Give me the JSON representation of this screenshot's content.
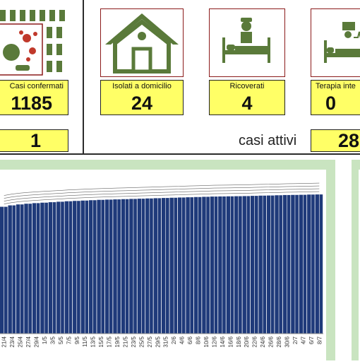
{
  "stats": {
    "confirmed": {
      "label": "Casi confermati",
      "value": "1185"
    },
    "home_isolation": {
      "label": "Isolati a domicilio",
      "value": "24"
    },
    "hospitalized": {
      "label": "Ricoverati",
      "value": "4"
    },
    "intensive": {
      "label": "Terapia inte",
      "value": "0"
    },
    "left_box_value": "1",
    "active_label": "casi attivi",
    "active_value": "28"
  },
  "icons": {
    "confirmed": "virus-people-icon",
    "home_isolation": "house-icon",
    "hospitalized": "hospital-bed-icon",
    "intensive": "icu-monitor-icon"
  },
  "colors": {
    "bar": "#1f3a7a",
    "label_bg": "#ffff66",
    "icon_green": "#5a7a3a",
    "chart_frame": "#c9e4c0",
    "icon_border": "#8b1a1a"
  },
  "chart_data": {
    "type": "bar",
    "title": "",
    "xlabel": "",
    "ylabel": "",
    "categories": [
      "21/4",
      "23/4",
      "25/4",
      "27/4",
      "29/4",
      "1/5",
      "3/5",
      "5/5",
      "7/5",
      "9/5",
      "11/5",
      "13/5",
      "15/5",
      "17/5",
      "19/5",
      "21/5",
      "23/5",
      "25/5",
      "27/5",
      "29/5",
      "31/5",
      "2/6",
      "4/6",
      "6/6",
      "8/6",
      "10/6",
      "12/6",
      "14/6",
      "16/6",
      "18/6",
      "20/6",
      "22/6",
      "24/6",
      "26/6",
      "28/6",
      "30/6",
      "2/7",
      "4/7",
      "6/7",
      "8/7"
    ],
    "values": [
      1080,
      1092,
      1100,
      1106,
      1111,
      1115,
      1119,
      1123,
      1127,
      1130,
      1133,
      1136,
      1139,
      1141,
      1143,
      1145,
      1147,
      1149,
      1151,
      1153,
      1155,
      1157,
      1159,
      1161,
      1163,
      1165,
      1167,
      1168,
      1169,
      1170,
      1171,
      1173,
      1175,
      1176,
      1178,
      1180,
      1181,
      1182,
      1184,
      1185
    ],
    "ylim": [
      0,
      1300
    ],
    "grid": false
  }
}
